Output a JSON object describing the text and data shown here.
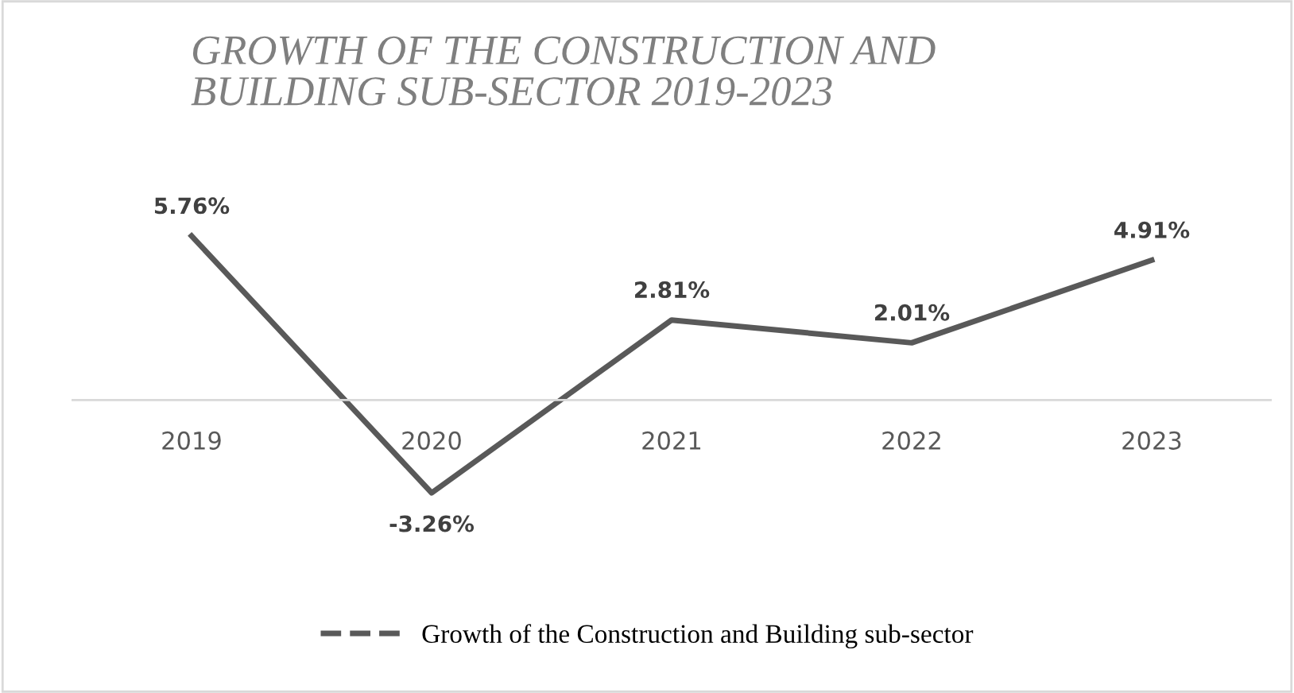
{
  "chart_data": {
    "type": "line",
    "title": "GROWTH OF THE CONSTRUCTION AND\nBUILDING SUB-SECTOR 2019-2023",
    "categories": [
      "2019",
      "2020",
      "2021",
      "2022",
      "2023"
    ],
    "series": [
      {
        "name": "Growth of the Construction and Building sub-sector",
        "color": "#595959",
        "values": [
          5.76,
          -3.26,
          2.81,
          2.01,
          4.91
        ],
        "value_labels": [
          "5.76%",
          "-3.26%",
          "2.81%",
          "2.01%",
          "4.91%"
        ]
      }
    ],
    "legend": "bottom",
    "marker": "none",
    "line_style": "solid"
  }
}
